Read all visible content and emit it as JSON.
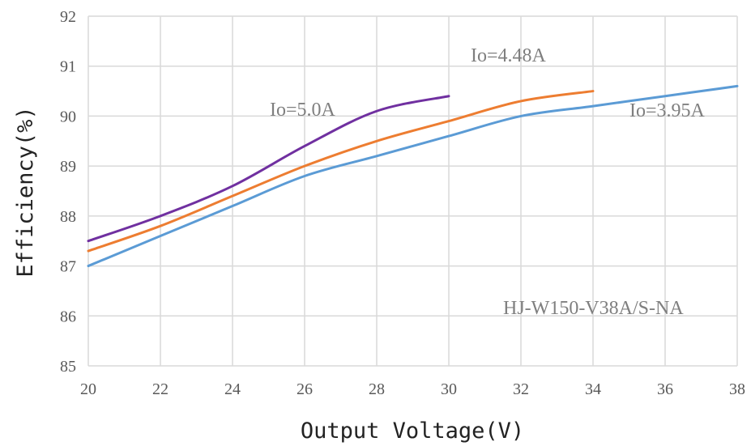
{
  "chart_data": {
    "type": "line",
    "xlabel": "Output Voltage(V)",
    "ylabel": "Efficiency(%)",
    "xlim": [
      20,
      38
    ],
    "ylim": [
      85,
      92
    ],
    "x_ticks": [
      "20",
      "22",
      "24",
      "26",
      "28",
      "30",
      "32",
      "34",
      "36",
      "38"
    ],
    "y_ticks": [
      "85",
      "86",
      "87",
      "88",
      "89",
      "90",
      "91",
      "92"
    ],
    "grid": true,
    "series": [
      {
        "name": "Io=5.0A",
        "color": "#7030a0",
        "x": [
          20,
          22,
          24,
          26,
          28,
          30
        ],
        "y": [
          87.5,
          88.0,
          88.6,
          89.4,
          90.1,
          90.4
        ]
      },
      {
        "name": "Io=4.48A",
        "color": "#ed7d31",
        "x": [
          20,
          22,
          24,
          26,
          28,
          30,
          32,
          34
        ],
        "y": [
          87.3,
          87.8,
          88.4,
          89.0,
          89.5,
          89.9,
          90.3,
          90.5
        ]
      },
      {
        "name": "Io=3.95A",
        "color": "#5b9bd5",
        "x": [
          20,
          22,
          24,
          26,
          28,
          30,
          32,
          34,
          36,
          38
        ],
        "y": [
          87.0,
          87.6,
          88.2,
          88.8,
          89.2,
          89.6,
          90.0,
          90.2,
          90.4,
          90.6
        ]
      }
    ],
    "annotations": {
      "model": "HJ-W150-V38A/S-NA"
    }
  }
}
